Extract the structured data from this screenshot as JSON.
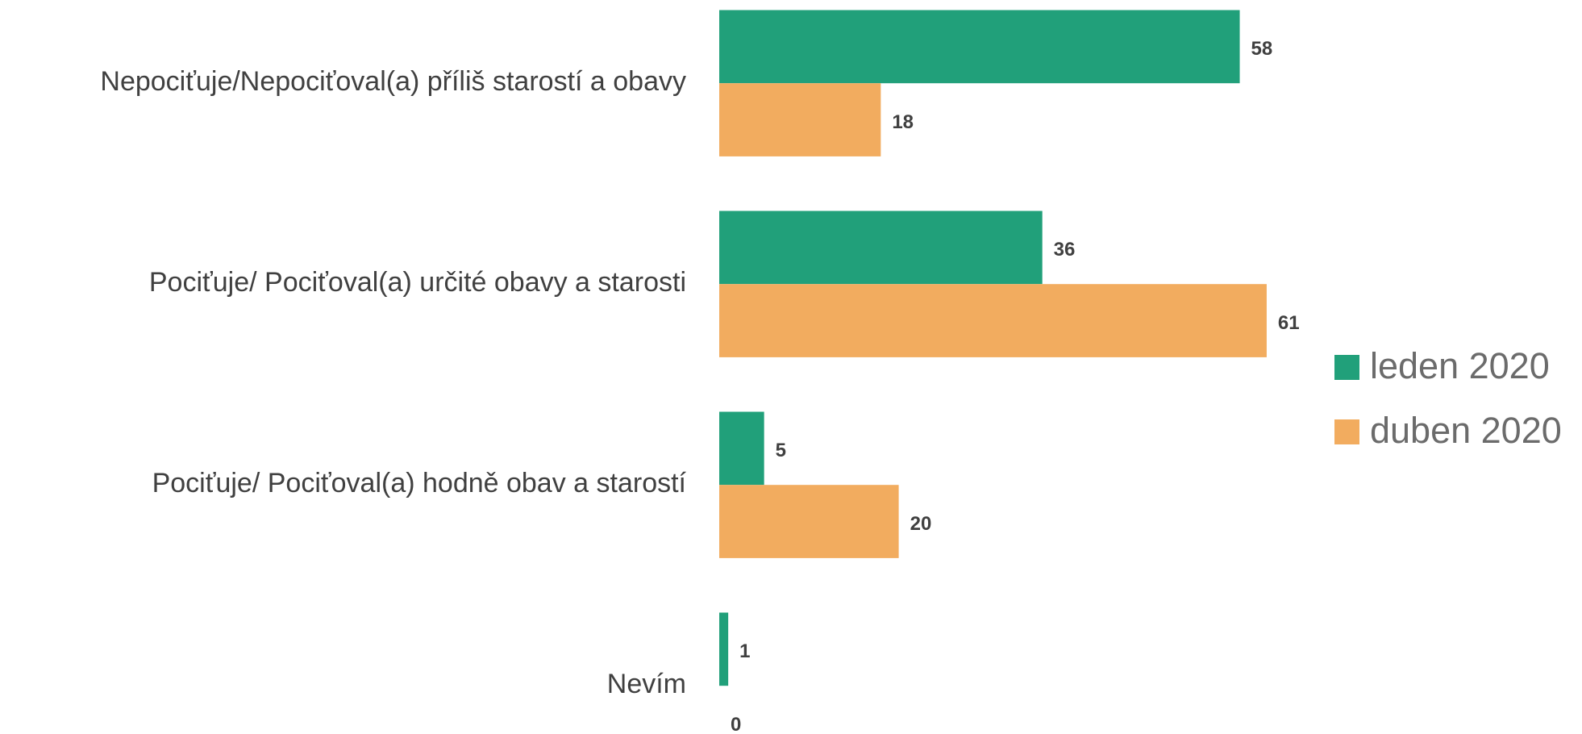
{
  "chart_data": {
    "type": "hbar",
    "categories": [
      "Nepociťuje/Nepociťoval(a) příliš starostí a obavy",
      "Pociťuje/ Pociťoval(a) určité obavy a starosti",
      "Pociťuje/ Pociťoval(a) hodně obav a starostí",
      "Nevím"
    ],
    "series": [
      {
        "name": "leden 2020",
        "color": "#21a07a",
        "values": [
          58,
          36,
          5,
          1
        ]
      },
      {
        "name": "duben 2020",
        "color": "#f2ac5f",
        "values": [
          18,
          61,
          20,
          0
        ]
      }
    ],
    "legend": "right"
  }
}
